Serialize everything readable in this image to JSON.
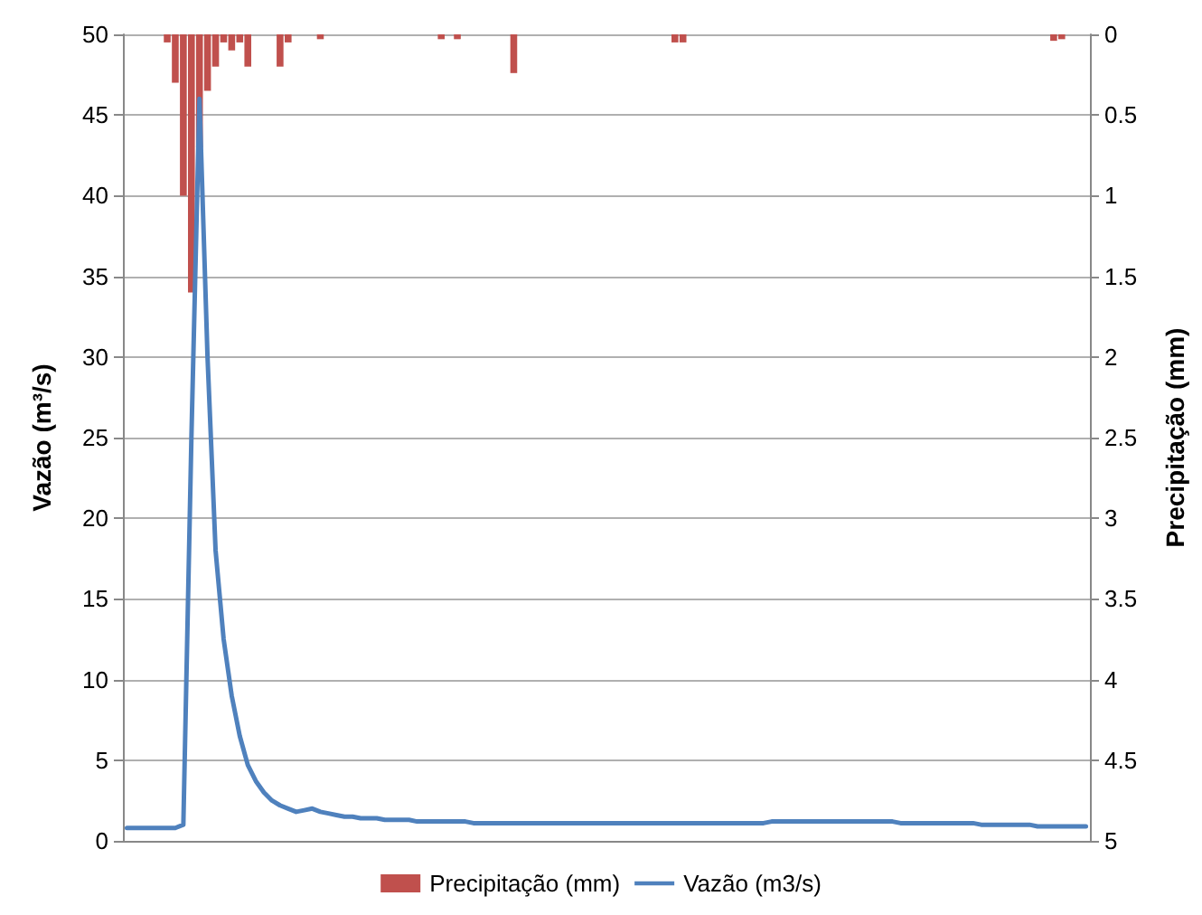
{
  "chart_data": {
    "type": "line",
    "ylabel": "Vazão (m³/s)",
    "y2label": "Precipitação (mm)",
    "categories": [
      null,
      null,
      null,
      null,
      null,
      null,
      null,
      null,
      null,
      null,
      null,
      null,
      null,
      null,
      null,
      null,
      null,
      null,
      null,
      null,
      null,
      null,
      null,
      null,
      null,
      null,
      null,
      null,
      null,
      null,
      null,
      null,
      null,
      null,
      null,
      null,
      null,
      null,
      null,
      null,
      null,
      null,
      null,
      null,
      null,
      null,
      null,
      null,
      null,
      null,
      null,
      null,
      null,
      null,
      null,
      null,
      null,
      null,
      null,
      null,
      null,
      null,
      null,
      null,
      null,
      null,
      null,
      null,
      null,
      null,
      null,
      null,
      null,
      null,
      null,
      null,
      null,
      null,
      null,
      null,
      null,
      null,
      null,
      null,
      null,
      null,
      null,
      null,
      null,
      null,
      null,
      null,
      null,
      null,
      null,
      null,
      null,
      null,
      null,
      null,
      null,
      null,
      null,
      null,
      null,
      null,
      null,
      null,
      null,
      null,
      null,
      null,
      null,
      null,
      null,
      null,
      null,
      null,
      null,
      null
    ],
    "series": [
      {
        "name": "Precipitação (mm)",
        "type": "bar",
        "axis": "y2",
        "color": "#c0504d",
        "values": [
          null,
          null,
          null,
          null,
          null,
          0.05,
          0.3,
          1.0,
          1.6,
          0.7,
          0.35,
          0.2,
          0.05,
          0.1,
          0.05,
          0.2,
          null,
          null,
          null,
          0.2,
          0.05,
          null,
          null,
          null,
          0.03,
          null,
          null,
          null,
          null,
          null,
          null,
          null,
          null,
          null,
          null,
          null,
          null,
          null,
          null,
          0.03,
          null,
          0.03,
          null,
          null,
          null,
          null,
          null,
          null,
          0.24,
          null,
          null,
          null,
          null,
          null,
          null,
          null,
          null,
          null,
          null,
          null,
          null,
          null,
          null,
          null,
          null,
          null,
          null,
          null,
          0.05,
          0.05,
          null,
          null,
          null,
          null,
          null,
          null,
          null,
          null,
          null,
          null,
          null,
          null,
          null,
          null,
          null,
          null,
          null,
          null,
          null,
          null,
          null,
          null,
          null,
          null,
          null,
          null,
          null,
          null,
          null,
          null,
          null,
          null,
          null,
          null,
          null,
          null,
          null,
          null,
          null,
          null,
          null,
          null,
          null,
          null,
          null,
          0.04,
          0.03,
          null,
          null,
          null
        ]
      },
      {
        "name": "Vazão (m3/s)",
        "color": "#4f81bd",
        "values": [
          0.8,
          0.8,
          0.8,
          0.8,
          0.8,
          0.8,
          0.8,
          1.0,
          25,
          46,
          30,
          18,
          12.5,
          9,
          6.5,
          4.7,
          3.7,
          3.0,
          2.5,
          2.2,
          2.0,
          1.8,
          1.9,
          2.0,
          1.8,
          1.7,
          1.6,
          1.5,
          1.5,
          1.4,
          1.4,
          1.4,
          1.3,
          1.3,
          1.3,
          1.3,
          1.2,
          1.2,
          1.2,
          1.2,
          1.2,
          1.2,
          1.2,
          1.1,
          1.1,
          1.1,
          1.1,
          1.1,
          1.1,
          1.1,
          1.1,
          1.1,
          1.1,
          1.1,
          1.1,
          1.1,
          1.1,
          1.1,
          1.1,
          1.1,
          1.1,
          1.1,
          1.1,
          1.1,
          1.1,
          1.1,
          1.1,
          1.1,
          1.1,
          1.1,
          1.1,
          1.1,
          1.1,
          1.1,
          1.1,
          1.1,
          1.1,
          1.1,
          1.1,
          1.1,
          1.2,
          1.2,
          1.2,
          1.2,
          1.2,
          1.2,
          1.2,
          1.2,
          1.2,
          1.2,
          1.2,
          1.2,
          1.2,
          1.2,
          1.2,
          1.2,
          1.1,
          1.1,
          1.1,
          1.1,
          1.1,
          1.1,
          1.1,
          1.1,
          1.1,
          1.1,
          1.0,
          1.0,
          1.0,
          1.0,
          1.0,
          1.0,
          1.0,
          0.9,
          0.9,
          0.9,
          0.9,
          0.9,
          0.9,
          0.9
        ]
      }
    ],
    "ylim": [
      0,
      50
    ],
    "yticks": [
      0,
      5,
      10,
      15,
      20,
      25,
      30,
      35,
      40,
      45,
      50
    ],
    "y2lim": [
      5,
      0
    ],
    "y2ticks": [
      0,
      0.5,
      1,
      1.5,
      2,
      2.5,
      3,
      3.5,
      4,
      4.5,
      5
    ],
    "grid": "y",
    "legend": "bottom",
    "marker": "none",
    "line_style": "solid"
  }
}
